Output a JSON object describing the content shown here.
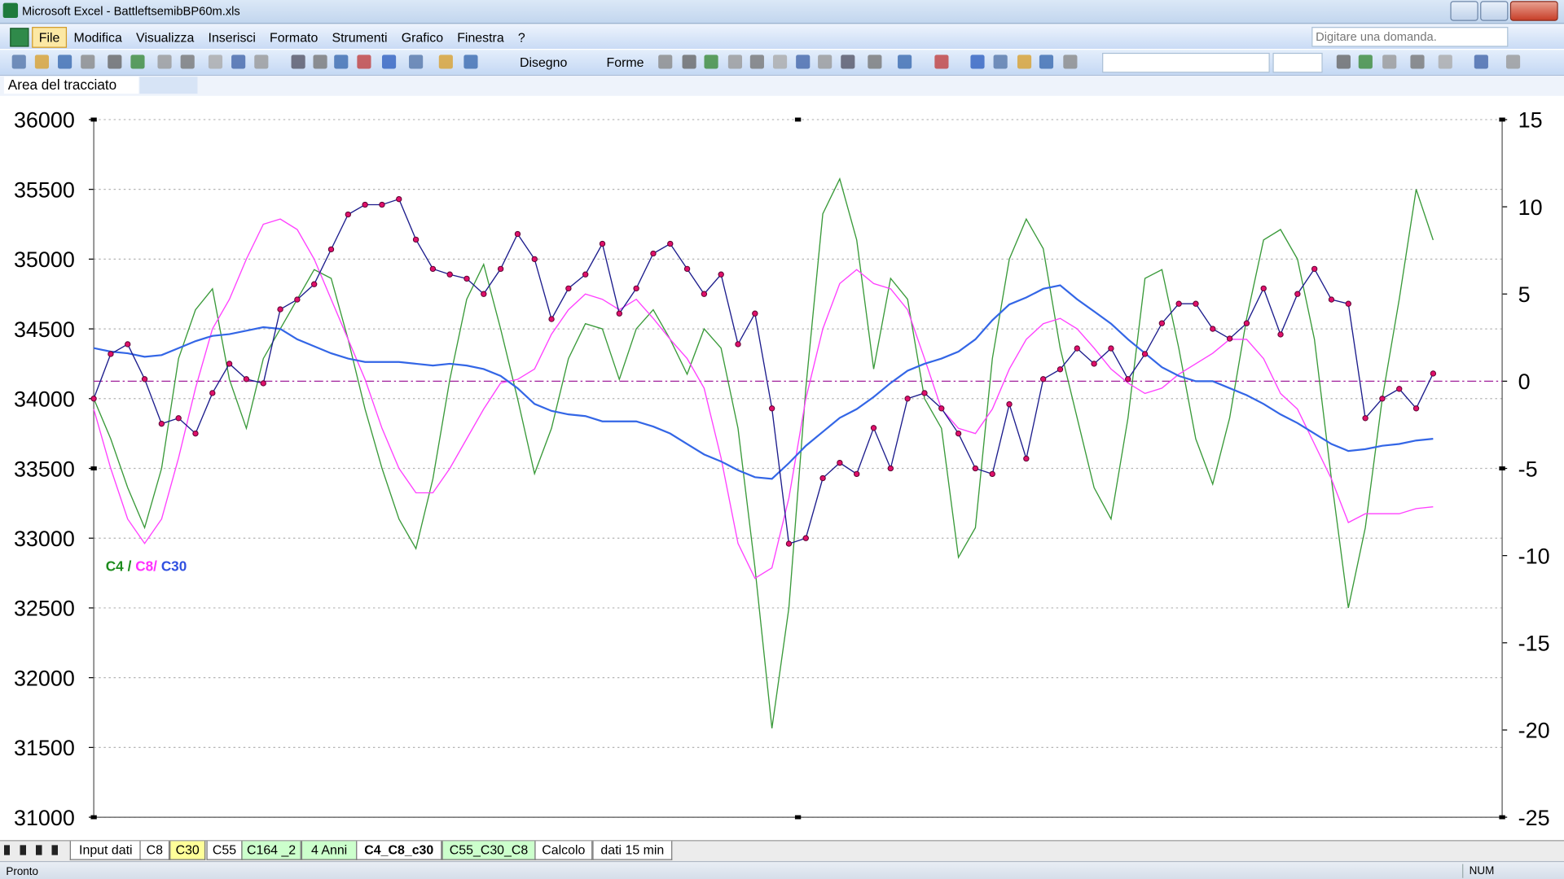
{
  "ui": {
    "title": "Microsoft Excel - BattleftsemibBP60m.xls",
    "menu": [
      "File",
      "Modifica",
      "Visualizza",
      "Inserisci",
      "Formato",
      "Strumenti",
      "Grafico",
      "Finestra",
      "?"
    ],
    "help_box": "Digitare una domanda.",
    "toolbar": {
      "draw": "Disegno",
      "shapes": "Forme"
    },
    "name_box": "Area del tracciato",
    "sheets": [
      "Input dati",
      "C8",
      "C30",
      "C55",
      "C164 _2",
      "4 Anni",
      "C4_C8_c30",
      "C55_C30_C8",
      "Calcolo",
      "dati 15 min"
    ],
    "sheet_colors": [
      "#ffffff",
      "#ffffff",
      "#ffff99",
      "#ffffff",
      "#ccffcc",
      "#ccffcc",
      "#ffffff",
      "#ccffcc",
      "#ffffff",
      "#ffffff"
    ],
    "active_sheet": 6,
    "status": "Pronto",
    "num_lock": "NUM"
  },
  "chart_data": {
    "type": "line",
    "categories": [
      null,
      null,
      null,
      null,
      null,
      null,
      null,
      null,
      null,
      null,
      null,
      null,
      null,
      null,
      null,
      null,
      null,
      null,
      null,
      null,
      null,
      null,
      null,
      null,
      null,
      null,
      null,
      null,
      null,
      null,
      null,
      null,
      null,
      null,
      null,
      null,
      null,
      null,
      null,
      null,
      null,
      null,
      null,
      null,
      null,
      null,
      null,
      null,
      null,
      null,
      null,
      null,
      null,
      null,
      null,
      null,
      null,
      null,
      null,
      null,
      null,
      null,
      null,
      null,
      null,
      null,
      null,
      null,
      null,
      null,
      null,
      null,
      null,
      null,
      null,
      null,
      null,
      null,
      null,
      null
    ],
    "ylim": [
      31000,
      36000
    ],
    "yticks": [
      31000,
      31500,
      32000,
      32500,
      33000,
      33500,
      34000,
      34500,
      35000,
      35500,
      36000
    ],
    "y2lim": [
      -25,
      15
    ],
    "y2ticks": [
      -25,
      -20,
      -15,
      -10,
      -5,
      0,
      5,
      10,
      15
    ],
    "grid": true,
    "reference_line": {
      "axis": "y2",
      "value": 0,
      "color": "#a0209a"
    },
    "annotation": {
      "parts": [
        {
          "text": "C4",
          "color": "#1e8c1e"
        },
        {
          "text": "/",
          "color": "#1e8c1e"
        },
        {
          "text": "C8/",
          "color": "#ff30ff"
        },
        {
          "text": "C30",
          "color": "#3050e0"
        }
      ]
    },
    "series": [
      {
        "axis": "y2",
        "color": "#3a9a3a",
        "width": 1.1,
        "values": [
          -1.0,
          -3.3,
          -6.1,
          -8.4,
          -5.0,
          1.3,
          4.1,
          5.3,
          0.1,
          -2.7,
          1.3,
          3.0,
          4.7,
          6.4,
          5.9,
          2.4,
          -1.6,
          -5.0,
          -7.9,
          -9.6,
          -5.6,
          0.1,
          4.7,
          6.7,
          3.0,
          -1.0,
          -5.3,
          -2.7,
          1.3,
          3.3,
          3.0,
          0.1,
          3.0,
          4.1,
          2.4,
          0.4,
          3.0,
          1.9,
          -2.7,
          -10.7,
          -19.9,
          -13.0,
          -0.4,
          9.6,
          11.6,
          8.1,
          0.7,
          5.9,
          4.7,
          -1.0,
          -2.7,
          -10.1,
          -8.4,
          1.3,
          7.0,
          9.3,
          7.6,
          1.9,
          -2.1,
          -6.1,
          -7.9,
          -2.1,
          5.9,
          6.4,
          1.9,
          -3.3,
          -5.9,
          -2.1,
          3.6,
          8.1,
          8.7,
          7.0,
          2.4,
          -5.6,
          -13.0,
          -8.4,
          -1.0,
          4.7,
          11.0,
          8.1
        ]
      },
      {
        "axis": "y2",
        "color": "#ff40ff",
        "width": 1.1,
        "values": [
          -1.6,
          -5.0,
          -7.9,
          -9.3,
          -7.9,
          -4.4,
          -0.4,
          3.0,
          4.7,
          7.0,
          9.0,
          9.3,
          8.7,
          7.0,
          4.7,
          2.4,
          0.1,
          -2.7,
          -5.0,
          -6.4,
          -6.4,
          -5.0,
          -3.3,
          -1.6,
          -0.1,
          0.1,
          0.7,
          2.7,
          4.1,
          5.0,
          4.7,
          4.1,
          4.7,
          3.6,
          2.4,
          1.3,
          -0.4,
          -4.4,
          -9.3,
          -11.3,
          -10.7,
          -6.7,
          -1.0,
          3.0,
          5.6,
          6.4,
          5.6,
          5.3,
          4.1,
          1.3,
          -1.6,
          -2.7,
          -3.0,
          -1.6,
          0.7,
          2.4,
          3.3,
          3.6,
          3.0,
          1.9,
          0.7,
          -0.1,
          -0.7,
          -0.4,
          0.4,
          1.0,
          1.6,
          2.4,
          2.4,
          1.3,
          -0.7,
          -1.6,
          -3.6,
          -5.6,
          -8.1,
          -7.6,
          -7.6,
          -7.6,
          -7.3,
          -7.2
        ]
      },
      {
        "axis": "y2",
        "color": "#3366e6",
        "width": 1.8,
        "values": [
          1.9,
          1.7,
          1.6,
          1.4,
          1.5,
          1.9,
          2.3,
          2.6,
          2.7,
          2.9,
          3.1,
          3.0,
          2.4,
          2.0,
          1.6,
          1.3,
          1.1,
          1.1,
          1.1,
          1.0,
          0.9,
          1.0,
          0.9,
          0.7,
          0.3,
          -0.4,
          -1.3,
          -1.7,
          -1.9,
          -2.0,
          -2.3,
          -2.3,
          -2.3,
          -2.6,
          -3.0,
          -3.6,
          -4.2,
          -4.6,
          -5.1,
          -5.5,
          -5.6,
          -4.7,
          -3.7,
          -2.9,
          -2.1,
          -1.6,
          -0.9,
          -0.1,
          0.6,
          1.0,
          1.3,
          1.7,
          2.4,
          3.5,
          4.4,
          4.8,
          5.3,
          5.5,
          4.7,
          4.0,
          3.3,
          2.4,
          1.6,
          0.8,
          0.3,
          0.0,
          0.0,
          -0.4,
          -0.8,
          -1.3,
          -1.9,
          -2.4,
          -3.0,
          -3.6,
          -4.0,
          -3.9,
          -3.7,
          -3.6,
          -3.4,
          -3.3
        ]
      },
      {
        "color": "#1c1c8c",
        "marker_color": "#e0106a",
        "markers": true,
        "width": 1.1,
        "values": [
          34000,
          34320,
          34390,
          34140,
          33820,
          33860,
          33750,
          34040,
          34250,
          34140,
          34110,
          34640,
          34710,
          34820,
          35070,
          35320,
          35390,
          35390,
          35430,
          35140,
          34930,
          34890,
          34860,
          34750,
          34930,
          35180,
          35000,
          34570,
          34790,
          34890,
          35110,
          34610,
          34790,
          35040,
          35110,
          34930,
          34750,
          34890,
          34390,
          34610,
          33930,
          32960,
          33000,
          33430,
          33540,
          33460,
          33790,
          33500,
          34000,
          34040,
          33930,
          33750,
          33500,
          33460,
          33960,
          33570,
          34140,
          34210,
          34360,
          34250,
          34360,
          34140,
          34320,
          34540,
          34680,
          34680,
          34500,
          34430,
          34540,
          34790,
          34460,
          34750,
          34930,
          34710,
          34680,
          33860,
          34000,
          34070,
          33930,
          34180
        ]
      }
    ]
  }
}
